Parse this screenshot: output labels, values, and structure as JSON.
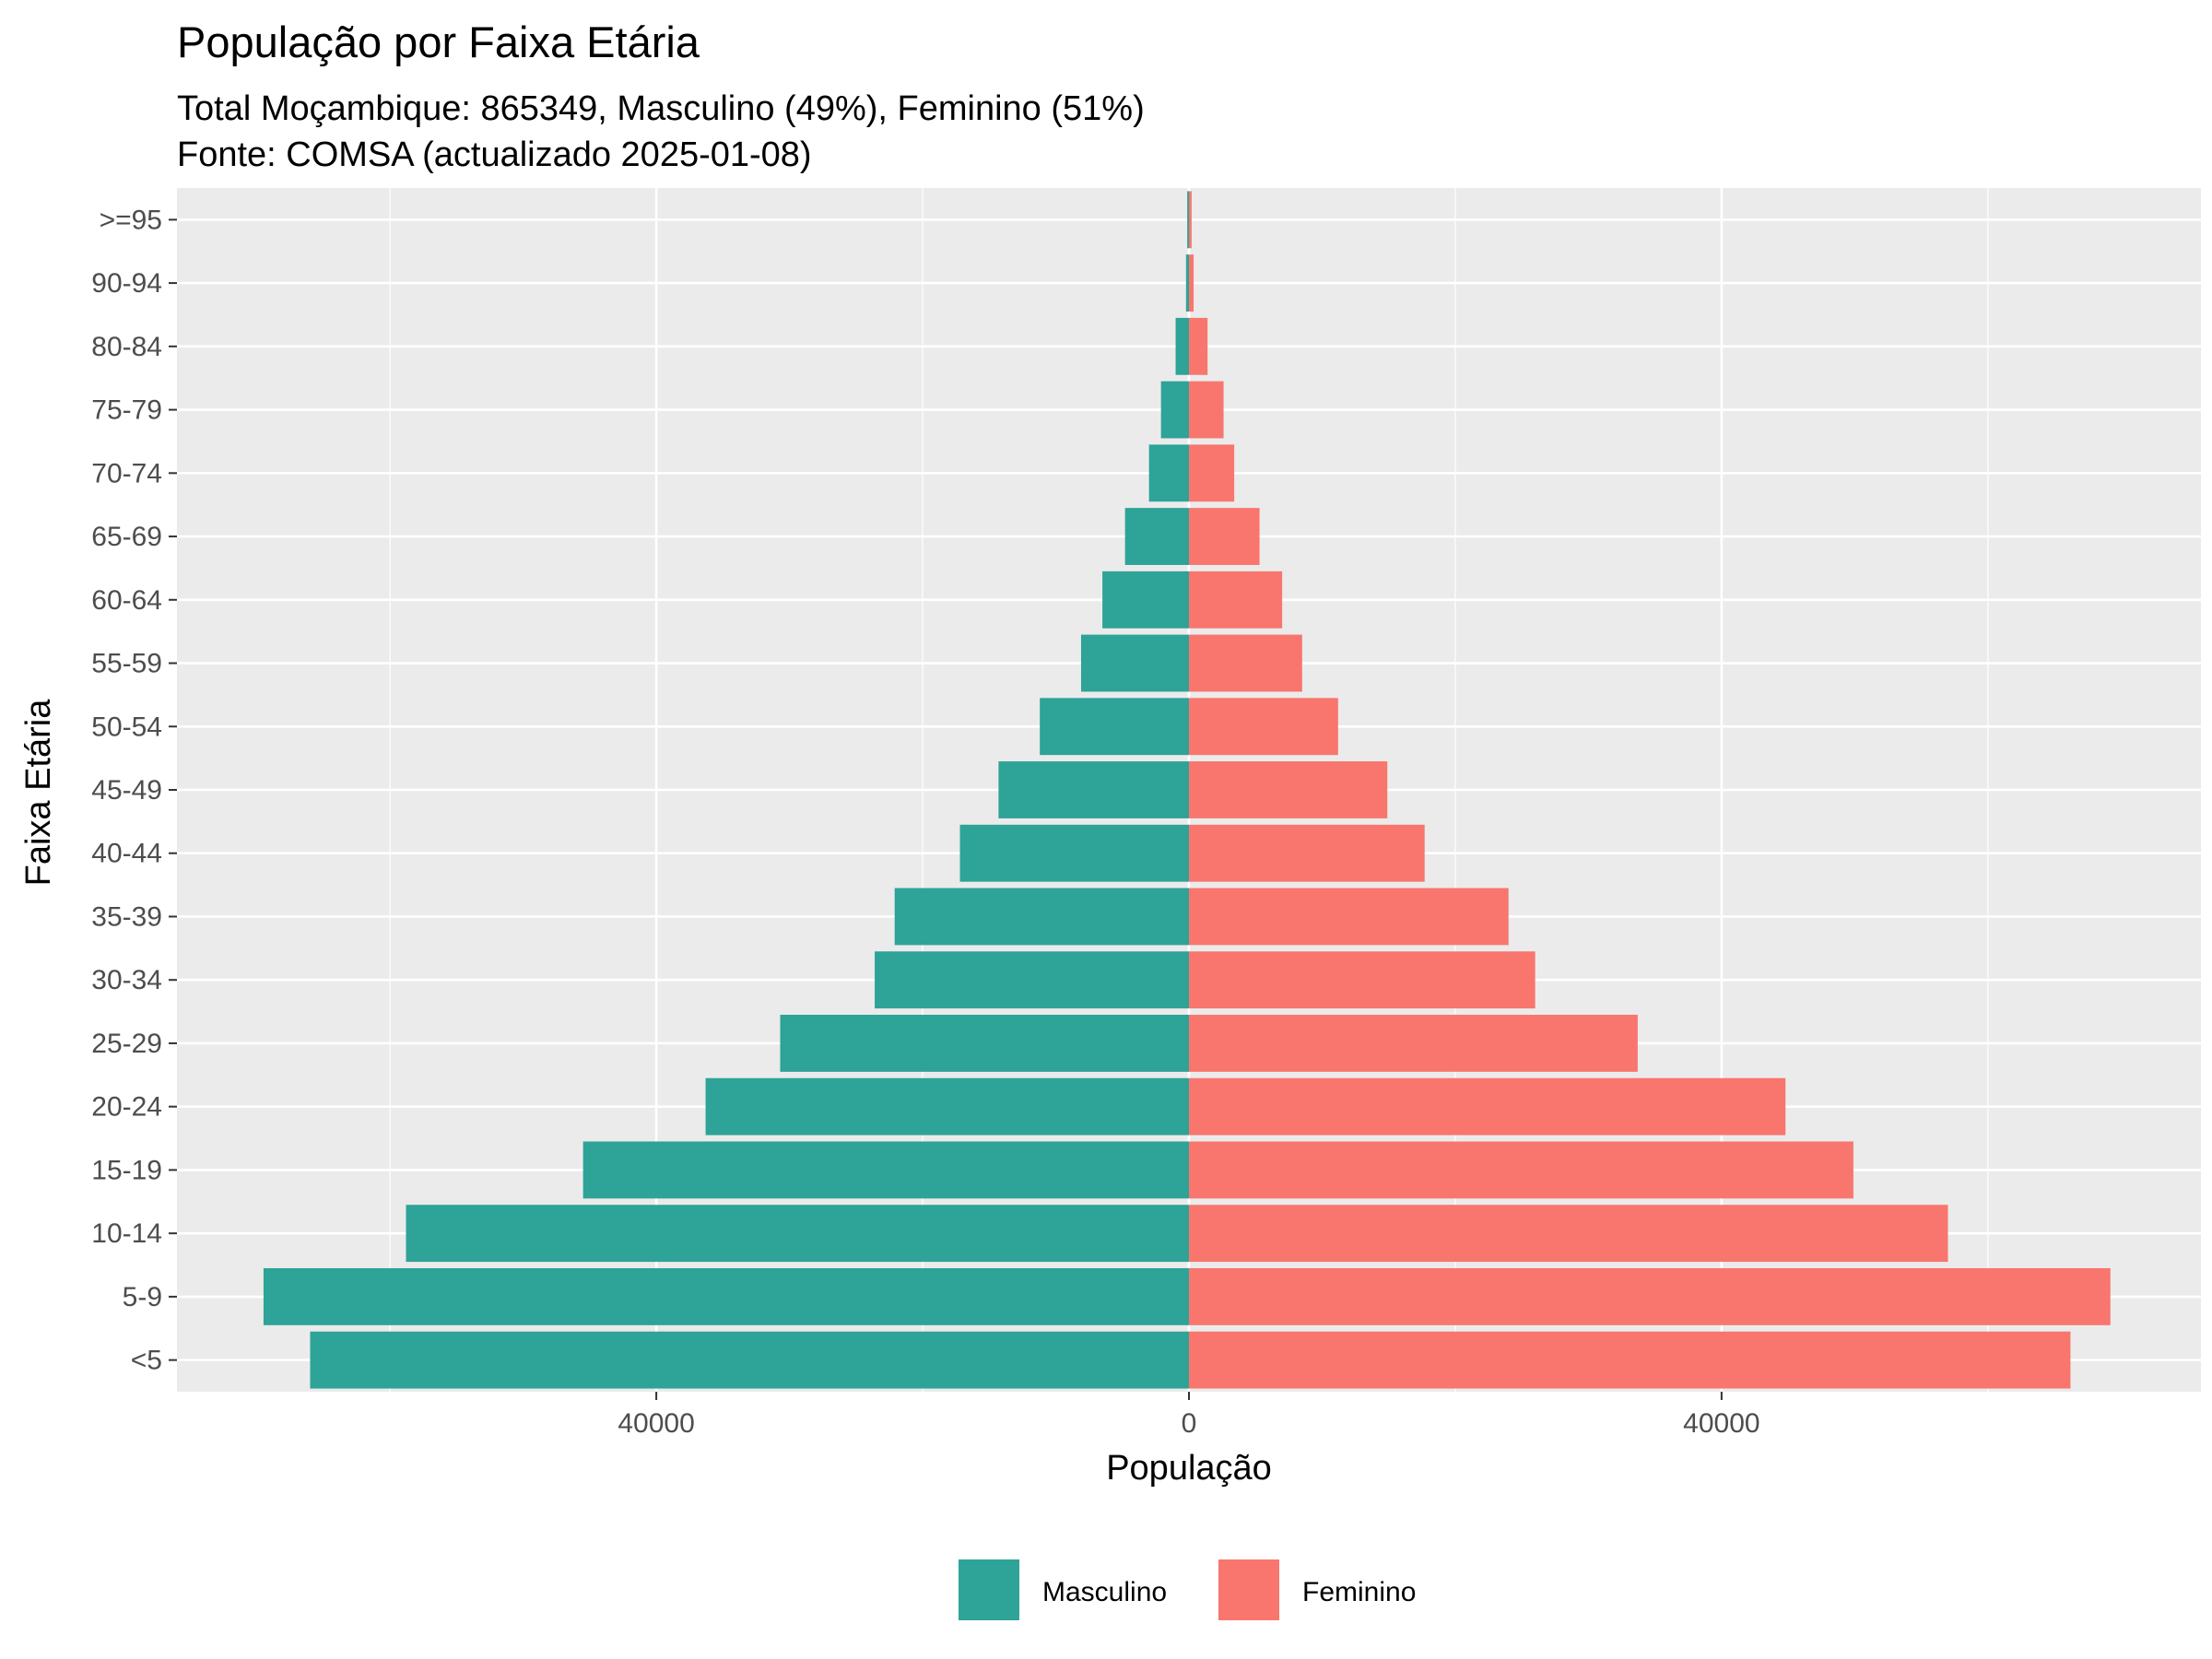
{
  "chart_data": {
    "type": "bar",
    "orientation": "horizontal",
    "subtype": "population-pyramid",
    "title": "População por Faixa Etária",
    "subtitle_lines": [
      "Total Moçambique: 865349, Masculino (49%), Feminino (51%)",
      "Fonte: COMSA (actualizado 2025-01-08)"
    ],
    "xlabel": "População",
    "ylabel": "Faixa Etária",
    "xlim": [
      -76000,
      76000
    ],
    "x_ticks": [
      {
        "value": -40000,
        "label": "40000"
      },
      {
        "value": 0,
        "label": "0"
      },
      {
        "value": 40000,
        "label": "40000"
      }
    ],
    "categories": [
      "<5",
      "5-9",
      "10-14",
      "15-19",
      "20-24",
      "25-29",
      "30-34",
      "35-39",
      "40-44",
      "45-49",
      "50-54",
      "55-59",
      "60-64",
      "65-69",
      "70-74",
      "75-79",
      "80-84",
      "90-94",
      ">=95"
    ],
    "series": [
      {
        "name": "Masculino",
        "color": "#2ea398",
        "direction": "left",
        "values": [
          66000,
          69500,
          58800,
          45500,
          36300,
          30700,
          23600,
          22100,
          17200,
          14300,
          11200,
          8100,
          6500,
          4800,
          3000,
          2100,
          1000,
          220,
          130
        ]
      },
      {
        "name": "Feminino",
        "color": "#f8766d",
        "direction": "right",
        "values": [
          66200,
          69200,
          57000,
          49900,
          44800,
          33700,
          26000,
          24000,
          17700,
          14900,
          11200,
          8500,
          7000,
          5300,
          3400,
          2600,
          1400,
          350,
          200
        ]
      }
    ],
    "legend": {
      "position": "bottom",
      "entries": [
        "Masculino",
        "Feminino"
      ]
    },
    "grid": true,
    "panel_background": "#ebebeb",
    "grid_color": "#ffffff"
  }
}
